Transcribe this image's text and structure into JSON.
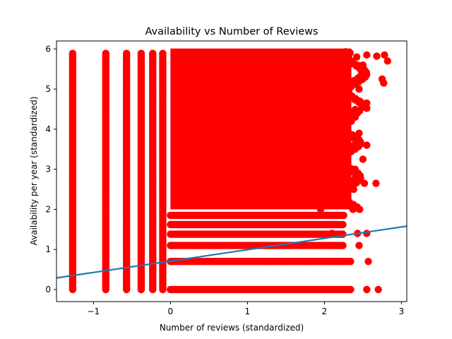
{
  "chart_data": {
    "type": "scatter",
    "title": "Availability vs Number of Reviews",
    "xlabel": "Number of reviews (standardized)",
    "ylabel": "Availability per year (standardized)",
    "xlim": [
      -1.48,
      3.07
    ],
    "ylim": [
      -0.3,
      6.2
    ],
    "x_ticks": [
      -1,
      0,
      1,
      2,
      3
    ],
    "y_ticks": [
      0,
      1,
      2,
      3,
      4,
      5,
      6
    ],
    "x_tick_labels": [
      "−1",
      "0",
      "1",
      "2",
      "3"
    ],
    "y_tick_labels": [
      "0",
      "1",
      "2",
      "3",
      "4",
      "5",
      "6"
    ],
    "grid": false,
    "point_color": "#ff0000",
    "line_color": "#1f77b4",
    "regression_line": {
      "x": [
        -1.48,
        3.07
      ],
      "y": [
        0.29,
        1.58
      ]
    },
    "levels": [
      0,
      0.7,
      1.1,
      1.38,
      1.62,
      1.85
    ],
    "columns": [
      {
        "x": -1.27,
        "ymax": 5.92
      },
      {
        "x": -0.84,
        "ymax": 5.92
      },
      {
        "x": -0.57,
        "ymax": 5.92
      },
      {
        "x": -0.38,
        "ymax": 5.92
      },
      {
        "x": -0.23,
        "ymax": 5.92
      },
      {
        "x": -0.1,
        "ymax": 5.92
      }
    ],
    "dense_region": {
      "x_start": 0.0,
      "x_end": 2.35,
      "ymax": 5.92
    },
    "outliers": [
      {
        "x": 2.42,
        "y": 5.8
      },
      {
        "x": 2.55,
        "y": 5.85
      },
      {
        "x": 2.68,
        "y": 5.82
      },
      {
        "x": 2.78,
        "y": 5.85
      },
      {
        "x": 2.82,
        "y": 5.7
      },
      {
        "x": 2.75,
        "y": 5.25
      },
      {
        "x": 2.77,
        "y": 5.15
      },
      {
        "x": 2.5,
        "y": 5.6
      },
      {
        "x": 2.45,
        "y": 5.0
      },
      {
        "x": 2.55,
        "y": 4.65
      },
      {
        "x": 2.4,
        "y": 4.3
      },
      {
        "x": 2.35,
        "y": 4.2
      },
      {
        "x": 2.45,
        "y": 3.9
      },
      {
        "x": 2.55,
        "y": 3.6
      },
      {
        "x": 2.5,
        "y": 3.25
      },
      {
        "x": 2.4,
        "y": 3.0
      },
      {
        "x": 2.45,
        "y": 2.8
      },
      {
        "x": 2.27,
        "y": 2.45
      },
      {
        "x": 2.38,
        "y": 2.5
      },
      {
        "x": 2.52,
        "y": 2.65
      },
      {
        "x": 2.67,
        "y": 2.65
      },
      {
        "x": 2.2,
        "y": 2.2
      },
      {
        "x": 2.1,
        "y": 2.15
      },
      {
        "x": 2.37,
        "y": 2.0
      },
      {
        "x": 2.43,
        "y": 1.4
      },
      {
        "x": 2.55,
        "y": 1.4
      },
      {
        "x": 2.45,
        "y": 1.1
      },
      {
        "x": 2.57,
        "y": 0.7
      },
      {
        "x": 2.55,
        "y": 0.0
      },
      {
        "x": 2.7,
        "y": 0.0
      },
      {
        "x": 2.25,
        "y": 0.7
      },
      {
        "x": 2.1,
        "y": 1.4
      },
      {
        "x": 1.95,
        "y": 2.0
      },
      {
        "x": 2.0,
        "y": 2.35
      },
      {
        "x": 2.25,
        "y": 1.85
      },
      {
        "x": 2.15,
        "y": 1.1
      }
    ]
  }
}
